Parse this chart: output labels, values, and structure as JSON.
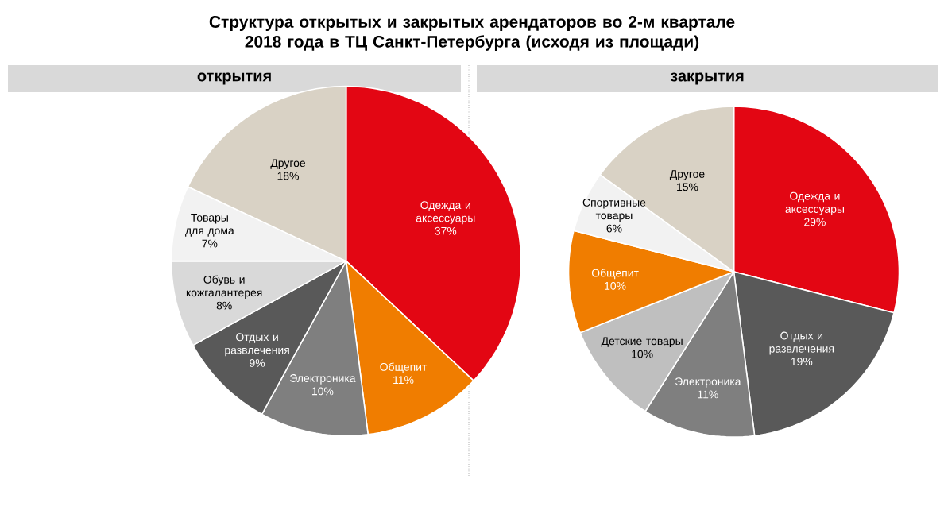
{
  "chart_data": [
    {
      "type": "pie",
      "title": "Структура открытых и закрытых арендаторов во 2-м квартале 2018 года в ТЦ Санкт-Петербурга (исходя из площади)",
      "subtitle": "открытия",
      "categories": [
        "Одежда и аксессуары",
        "Общепит",
        "Электроника",
        "Отдых и развлечения",
        "Обувь и кожгалантерея",
        "Товары для дома",
        "Другое"
      ],
      "values": [
        37,
        11,
        10,
        9,
        8,
        7,
        18
      ],
      "value_labels": [
        "37%",
        "11%",
        "10%",
        "9%",
        "8%",
        "7%",
        "18%"
      ],
      "colors": [
        "#e30613",
        "#f07d00",
        "#7f7f7f",
        "#595959",
        "#d9d9d9",
        "#f2f2f2",
        "#d9d2c5"
      ],
      "data_labels": true
    },
    {
      "type": "pie",
      "subtitle": "закрытия",
      "categories": [
        "Одежда и аксессуары",
        "Отдых и развлечения",
        "Электроника",
        "Детские товары",
        "Общепит",
        "Спортивные товары",
        "Другое"
      ],
      "values": [
        29,
        19,
        11,
        10,
        10,
        6,
        15
      ],
      "value_labels": [
        "29%",
        "19%",
        "11%",
        "10%",
        "10%",
        "6%",
        "15%"
      ],
      "colors": [
        "#e30613",
        "#595959",
        "#7f7f7f",
        "#bfbfbf",
        "#f07d00",
        "#f2f2f2",
        "#d9d2c5"
      ],
      "data_labels": true
    }
  ]
}
